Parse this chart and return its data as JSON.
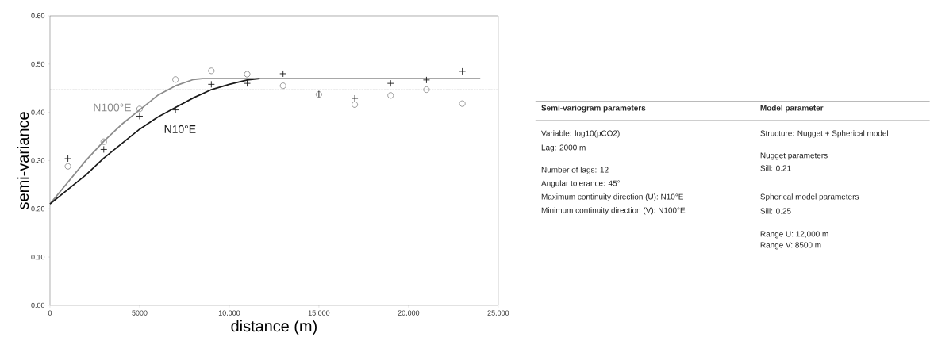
{
  "chart_data": [
    {
      "type": "scatter",
      "xlabel": "distance (m)",
      "ylabel": "semi-variance",
      "xlim": [
        0,
        25000
      ],
      "ylim": [
        0,
        0.6
      ],
      "xticks": [
        0,
        5000,
        {
          "value": 10000,
          "label": "10,000"
        },
        {
          "value": 15000,
          "label": "15,000"
        },
        {
          "value": 20000,
          "label": "20,000"
        },
        {
          "value": 25000,
          "label": "25,000"
        }
      ],
      "yticks": [
        {
          "value": 0,
          "label": "0.00"
        },
        {
          "value": 0.1,
          "label": "0.10"
        },
        {
          "value": 0.2,
          "label": "0.20"
        },
        {
          "value": 0.3,
          "label": "0.30"
        },
        {
          "value": 0.4,
          "label": "0.40"
        },
        {
          "value": 0.5,
          "label": "0.50"
        },
        {
          "value": 0.6,
          "label": "0.60"
        }
      ],
      "ref_lines": [
        {
          "axis": "y",
          "value": 0.447,
          "line_style": "dotted",
          "color": "#000000"
        }
      ],
      "series": [
        {
          "name": "N100°E",
          "type": "line",
          "color": "#8c8c8c",
          "marker": "none",
          "x": [
            0,
            1000,
            2000,
            3000,
            4000,
            5000,
            6000,
            7000,
            8000,
            8500,
            24000
          ],
          "values": [
            0.21,
            0.255,
            0.3,
            0.34,
            0.375,
            0.405,
            0.435,
            0.455,
            0.468,
            0.47,
            0.47
          ]
        },
        {
          "name": "N10°E",
          "type": "line",
          "color": "#1a1a1a",
          "marker": "none",
          "x": [
            0,
            1000,
            2000,
            3000,
            4000,
            5000,
            6000,
            7000,
            8000,
            9000,
            10000,
            11000,
            11700
          ],
          "values": [
            0.21,
            0.24,
            0.27,
            0.305,
            0.335,
            0.365,
            0.39,
            0.41,
            0.43,
            0.447,
            0.458,
            0.467,
            0.47
          ]
        },
        {
          "type": "scatter",
          "color": "#8c8c8c",
          "marker": "circle",
          "x": [
            1000,
            3000,
            5000,
            7000,
            9000,
            11000,
            13000,
            15000,
            17000,
            19000,
            21000,
            23000
          ],
          "values": [
            0.288,
            0.339,
            0.407,
            0.468,
            0.486,
            0.479,
            0.455,
            0.437,
            0.416,
            0.435,
            0.447,
            0.418
          ]
        },
        {
          "type": "scatter",
          "color": "#1a1a1a",
          "marker": "cross",
          "x": [
            1000,
            3000,
            5000,
            7000,
            9000,
            11000,
            13000,
            15000,
            17000,
            19000,
            21000,
            23000
          ],
          "values": [
            0.304,
            0.323,
            0.392,
            0.405,
            0.458,
            0.46,
            0.48,
            0.438,
            0.429,
            0.46,
            0.467,
            0.485
          ]
        }
      ]
    },
    {
      "type": "other",
      "annotations": [
        "Semi-variogram parameters",
        "Variable: log10(pCO2)",
        "Lag: 2000 m",
        "Number of lags: 12",
        "Angular tolerance: 45°",
        "Maximum continuity direction (U): N10°E",
        "Minimum continuity direction (V): N100°E",
        "Model parameter",
        "Structure: Nugget + Spherical model",
        "Nugget parameters",
        "Sill: 0.21",
        "Spherical model parameters",
        "Sill: 0.25",
        "Range U:   12,000 m",
        "Range V:     8500 m"
      ]
    }
  ]
}
